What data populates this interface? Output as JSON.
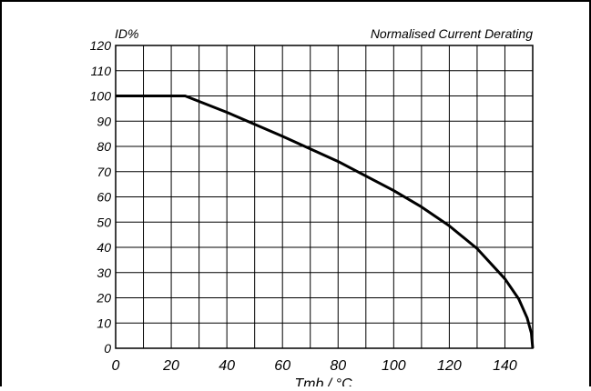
{
  "chart_data": {
    "type": "line",
    "title": "Normalised Current Derating",
    "ylabel": "ID%",
    "xlabel": "Tmb / °C",
    "xlim": [
      0,
      150
    ],
    "ylim": [
      0,
      120
    ],
    "x_ticks": [
      0,
      20,
      40,
      60,
      80,
      100,
      120,
      140
    ],
    "y_ticks": [
      0,
      10,
      20,
      30,
      40,
      50,
      60,
      70,
      80,
      90,
      100,
      110,
      120
    ],
    "grid": true,
    "series": [
      {
        "values": [
          {
            "x": 0,
            "y": 100
          },
          {
            "x": 25,
            "y": 100
          },
          {
            "x": 40,
            "y": 93.5
          },
          {
            "x": 60,
            "y": 84
          },
          {
            "x": 80,
            "y": 74
          },
          {
            "x": 100,
            "y": 62.5
          },
          {
            "x": 110,
            "y": 56
          },
          {
            "x": 120,
            "y": 48.5
          },
          {
            "x": 130,
            "y": 39.5
          },
          {
            "x": 140,
            "y": 27.5
          },
          {
            "x": 145,
            "y": 19.5
          },
          {
            "x": 148,
            "y": 12
          },
          {
            "x": 149.5,
            "y": 6
          },
          {
            "x": 150,
            "y": 0
          }
        ]
      }
    ]
  },
  "colors": {
    "line": "#000000",
    "grid": "#000000",
    "frame": "#000000"
  }
}
